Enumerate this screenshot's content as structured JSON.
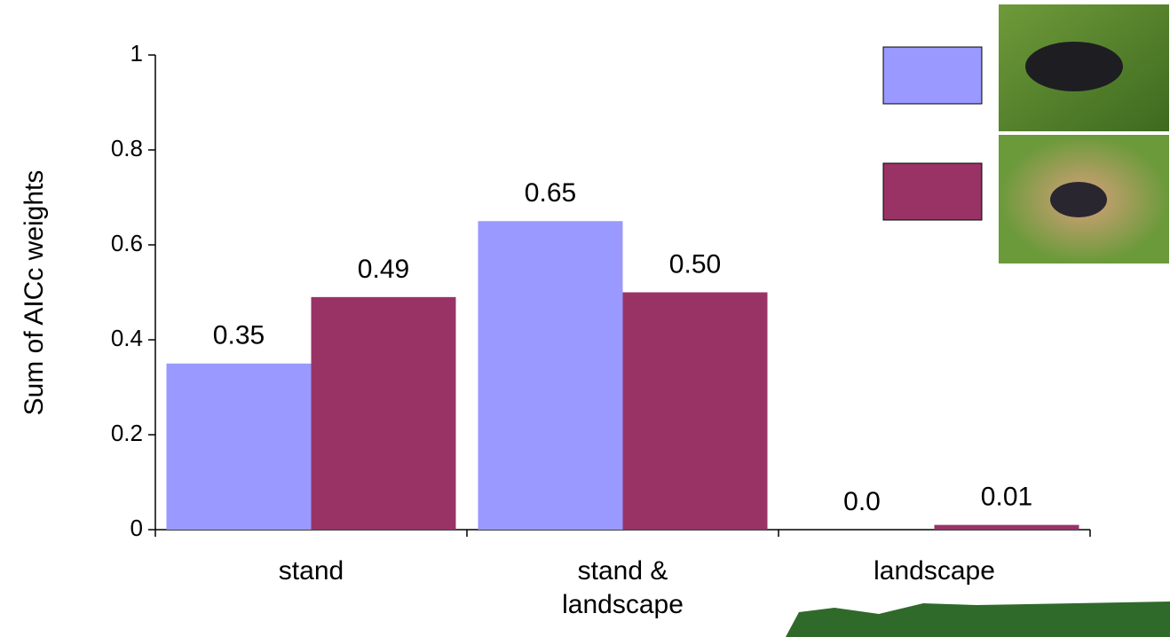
{
  "chart_data": {
    "type": "bar",
    "y_label": "Sum of AICc weights",
    "categories": [
      "stand",
      "stand & landscape",
      "landscape"
    ],
    "series": [
      {
        "color": "#9999ff",
        "values": [
          0.35,
          0.65,
          0
        ],
        "value_labels": [
          "0.35",
          "0.65",
          "0.0"
        ]
      },
      {
        "color": "#993366",
        "values": [
          0.49,
          0.5,
          0.01
        ],
        "value_labels": [
          "0.49",
          "0.50",
          "0.01"
        ]
      }
    ],
    "ylim": [
      0,
      1
    ],
    "yticks": [
      0,
      0.2,
      0.4,
      0.6,
      0.8,
      1
    ]
  }
}
